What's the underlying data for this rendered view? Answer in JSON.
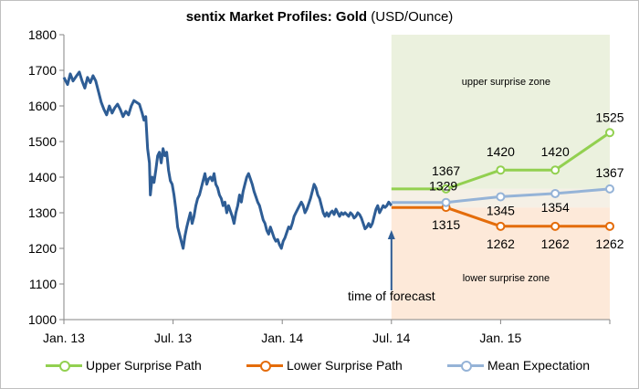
{
  "chart_data": {
    "type": "line",
    "title_bold": "sentix Market Profiles: Gold",
    "title_rest": " (USD/Ounce)",
    "ylim": [
      1000,
      1800
    ],
    "y_ticks": [
      "1800",
      "1700",
      "1600",
      "1500",
      "1400",
      "1300",
      "1200",
      "1100",
      "1000"
    ],
    "x_ticks": [
      "Jan. 13",
      "Jul. 13",
      "Jan. 14",
      "Jul. 14",
      "Jan. 15"
    ],
    "x_tick_months": [
      0,
      6,
      12,
      18,
      24
    ],
    "x_range_months": [
      0,
      30
    ],
    "forecast_month": 18,
    "annotation": "time of forecast",
    "zones": {
      "upper": "upper surprise zone",
      "lower": "lower surprise zone",
      "upper_color": "#ebf1de",
      "lower_color": "#fde9d9"
    },
    "history": [
      [
        0.0,
        1680
      ],
      [
        0.2,
        1660
      ],
      [
        0.35,
        1690
      ],
      [
        0.5,
        1670
      ],
      [
        0.7,
        1685
      ],
      [
        0.85,
        1695
      ],
      [
        1.0,
        1670
      ],
      [
        1.15,
        1650
      ],
      [
        1.3,
        1680
      ],
      [
        1.45,
        1665
      ],
      [
        1.6,
        1685
      ],
      [
        1.75,
        1670
      ],
      [
        1.9,
        1640
      ],
      [
        2.05,
        1610
      ],
      [
        2.2,
        1590
      ],
      [
        2.35,
        1575
      ],
      [
        2.5,
        1600
      ],
      [
        2.65,
        1580
      ],
      [
        2.8,
        1595
      ],
      [
        2.95,
        1605
      ],
      [
        3.1,
        1590
      ],
      [
        3.25,
        1570
      ],
      [
        3.4,
        1585
      ],
      [
        3.55,
        1575
      ],
      [
        3.7,
        1600
      ],
      [
        3.85,
        1615
      ],
      [
        4.0,
        1610
      ],
      [
        4.15,
        1605
      ],
      [
        4.3,
        1580
      ],
      [
        4.4,
        1560
      ],
      [
        4.5,
        1570
      ],
      [
        4.6,
        1480
      ],
      [
        4.7,
        1440
      ],
      [
        4.75,
        1350
      ],
      [
        4.85,
        1400
      ],
      [
        4.95,
        1385
      ],
      [
        5.05,
        1420
      ],
      [
        5.15,
        1460
      ],
      [
        5.25,
        1470
      ],
      [
        5.35,
        1440
      ],
      [
        5.45,
        1480
      ],
      [
        5.55,
        1460
      ],
      [
        5.65,
        1470
      ],
      [
        5.75,
        1420
      ],
      [
        5.85,
        1390
      ],
      [
        5.95,
        1380
      ],
      [
        6.05,
        1350
      ],
      [
        6.15,
        1310
      ],
      [
        6.25,
        1260
      ],
      [
        6.35,
        1240
      ],
      [
        6.45,
        1220
      ],
      [
        6.55,
        1200
      ],
      [
        6.65,
        1235
      ],
      [
        6.75,
        1260
      ],
      [
        6.85,
        1280
      ],
      [
        6.95,
        1300
      ],
      [
        7.05,
        1270
      ],
      [
        7.15,
        1290
      ],
      [
        7.25,
        1320
      ],
      [
        7.35,
        1340
      ],
      [
        7.45,
        1350
      ],
      [
        7.55,
        1370
      ],
      [
        7.65,
        1390
      ],
      [
        7.75,
        1410
      ],
      [
        7.85,
        1380
      ],
      [
        7.95,
        1395
      ],
      [
        8.05,
        1400
      ],
      [
        8.15,
        1390
      ],
      [
        8.25,
        1410
      ],
      [
        8.35,
        1380
      ],
      [
        8.45,
        1370
      ],
      [
        8.55,
        1350
      ],
      [
        8.65,
        1340
      ],
      [
        8.75,
        1320
      ],
      [
        8.85,
        1330
      ],
      [
        8.95,
        1300
      ],
      [
        9.05,
        1320
      ],
      [
        9.15,
        1305
      ],
      [
        9.25,
        1290
      ],
      [
        9.35,
        1270
      ],
      [
        9.45,
        1300
      ],
      [
        9.55,
        1320
      ],
      [
        9.65,
        1350
      ],
      [
        9.75,
        1330
      ],
      [
        9.85,
        1360
      ],
      [
        9.95,
        1380
      ],
      [
        10.05,
        1400
      ],
      [
        10.15,
        1410
      ],
      [
        10.25,
        1395
      ],
      [
        10.35,
        1380
      ],
      [
        10.45,
        1360
      ],
      [
        10.55,
        1345
      ],
      [
        10.65,
        1330
      ],
      [
        10.75,
        1320
      ],
      [
        10.85,
        1300
      ],
      [
        10.95,
        1280
      ],
      [
        11.05,
        1270
      ],
      [
        11.15,
        1250
      ],
      [
        11.25,
        1240
      ],
      [
        11.35,
        1260
      ],
      [
        11.45,
        1245
      ],
      [
        11.55,
        1230
      ],
      [
        11.65,
        1220
      ],
      [
        11.75,
        1225
      ],
      [
        11.85,
        1210
      ],
      [
        11.95,
        1200
      ],
      [
        12.05,
        1220
      ],
      [
        12.15,
        1230
      ],
      [
        12.25,
        1245
      ],
      [
        12.35,
        1260
      ],
      [
        12.45,
        1255
      ],
      [
        12.55,
        1270
      ],
      [
        12.65,
        1290
      ],
      [
        12.75,
        1300
      ],
      [
        12.85,
        1310
      ],
      [
        12.95,
        1320
      ],
      [
        13.05,
        1330
      ],
      [
        13.15,
        1320
      ],
      [
        13.25,
        1300
      ],
      [
        13.35,
        1310
      ],
      [
        13.45,
        1325
      ],
      [
        13.55,
        1340
      ],
      [
        13.65,
        1360
      ],
      [
        13.75,
        1380
      ],
      [
        13.85,
        1370
      ],
      [
        13.95,
        1350
      ],
      [
        14.05,
        1340
      ],
      [
        14.15,
        1320
      ],
      [
        14.25,
        1300
      ],
      [
        14.35,
        1290
      ],
      [
        14.45,
        1300
      ],
      [
        14.55,
        1290
      ],
      [
        14.65,
        1300
      ],
      [
        14.75,
        1305
      ],
      [
        14.85,
        1295
      ],
      [
        14.95,
        1310
      ],
      [
        15.05,
        1300
      ],
      [
        15.15,
        1290
      ],
      [
        15.25,
        1300
      ],
      [
        15.35,
        1295
      ],
      [
        15.45,
        1300
      ],
      [
        15.55,
        1295
      ],
      [
        15.65,
        1290
      ],
      [
        15.75,
        1300
      ],
      [
        15.85,
        1295
      ],
      [
        15.95,
        1285
      ],
      [
        16.05,
        1290
      ],
      [
        16.15,
        1300
      ],
      [
        16.25,
        1295
      ],
      [
        16.35,
        1285
      ],
      [
        16.45,
        1270
      ],
      [
        16.55,
        1255
      ],
      [
        16.65,
        1260
      ],
      [
        16.75,
        1270
      ],
      [
        16.85,
        1260
      ],
      [
        16.95,
        1270
      ],
      [
        17.05,
        1290
      ],
      [
        17.15,
        1310
      ],
      [
        17.25,
        1320
      ],
      [
        17.35,
        1300
      ],
      [
        17.45,
        1310
      ],
      [
        17.55,
        1320
      ],
      [
        17.65,
        1315
      ],
      [
        17.75,
        1320
      ],
      [
        17.85,
        1330
      ],
      [
        18.0,
        1320
      ]
    ],
    "series": [
      {
        "name": "Upper Surprise Path",
        "color": "#92d050",
        "x": [
          18,
          21,
          24,
          27,
          30
        ],
        "values": [
          1367,
          1367,
          1420,
          1420,
          1525
        ],
        "labels": [
          "",
          "1367",
          "1420",
          "1420",
          "1525"
        ]
      },
      {
        "name": "Lower Surprise Path",
        "color": "#e46c0a",
        "x": [
          18,
          21,
          24,
          27,
          30
        ],
        "values": [
          1315,
          1315,
          1262,
          1262,
          1262
        ],
        "labels": [
          "",
          "1315",
          "1262",
          "1262",
          "1262"
        ]
      },
      {
        "name": "Mean Expectation",
        "color": "#95b3d7",
        "x": [
          18,
          21,
          24,
          27,
          30
        ],
        "values": [
          1329,
          1329,
          1345,
          1354,
          1367
        ],
        "labels": [
          "",
          "1329",
          "1345",
          "1354",
          "1367"
        ]
      }
    ],
    "history_color": "#2e5d95"
  },
  "legend": {
    "upper": "Upper Surprise Path",
    "lower": "Lower Surprise Path",
    "mean": "Mean Expectation"
  }
}
